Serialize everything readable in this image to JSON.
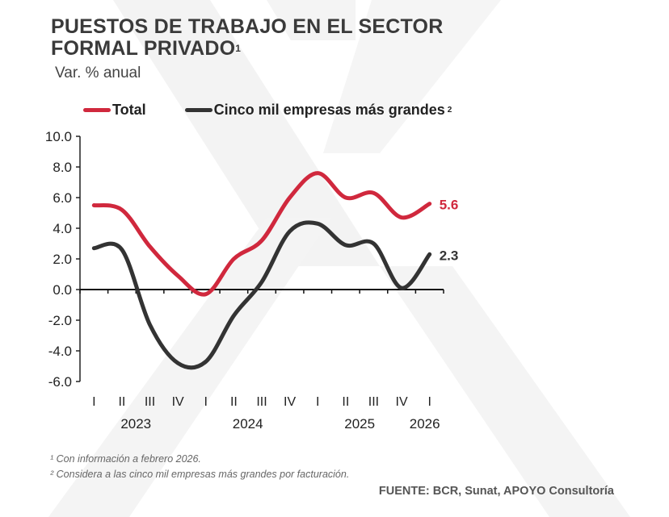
{
  "title_line1": "PUESTOS DE TRABAJO EN EL SECTOR",
  "title_line2": "FORMAL PRIVADO",
  "title_sup": "1",
  "subtitle": "Var. % anual",
  "notes": [
    "¹ Con información a febrero 2026.",
    "² Considera a las cinco mil empresas más grandes por facturación."
  ],
  "source": "FUENTE: BCR, Sunat, APOYO Consultoría",
  "chart_data": {
    "type": "line",
    "title": "PUESTOS DE TRABAJO EN EL SECTOR FORMAL PRIVADO",
    "ylabel": "Var. % anual",
    "ylim": [
      -6,
      10
    ],
    "yticks": [
      "10.0",
      "8.0",
      "6.0",
      "4.0",
      "2.0",
      "0.0",
      "-2.0",
      "-4.0",
      "-6.0"
    ],
    "categories": [
      "I",
      "II",
      "III",
      "IV",
      "I",
      "II",
      "III",
      "IV",
      "I",
      "II",
      "III",
      "IV",
      "I"
    ],
    "years": [
      {
        "label": "2023",
        "from": 0,
        "to": 3
      },
      {
        "label": "2024",
        "from": 4,
        "to": 7
      },
      {
        "label": "2025",
        "from": 8,
        "to": 11
      },
      {
        "label": "2026",
        "from": 12,
        "to": 12
      }
    ],
    "grid": false,
    "legend": "top",
    "series": [
      {
        "name": "Total",
        "color": "#d0283d",
        "values": [
          5.5,
          5.2,
          2.8,
          0.9,
          -0.3,
          2.0,
          3.2,
          6.0,
          7.6,
          6.0,
          6.3,
          4.7,
          5.6
        ],
        "end_label": "5.6"
      },
      {
        "name": "Cinco mil empresas más grandes",
        "name_sup": "2",
        "color": "#333333",
        "values": [
          2.7,
          2.6,
          -2.3,
          -4.8,
          -4.7,
          -1.7,
          0.5,
          3.8,
          4.3,
          2.9,
          3.0,
          0.1,
          2.3
        ],
        "end_label": "2.3"
      }
    ]
  }
}
